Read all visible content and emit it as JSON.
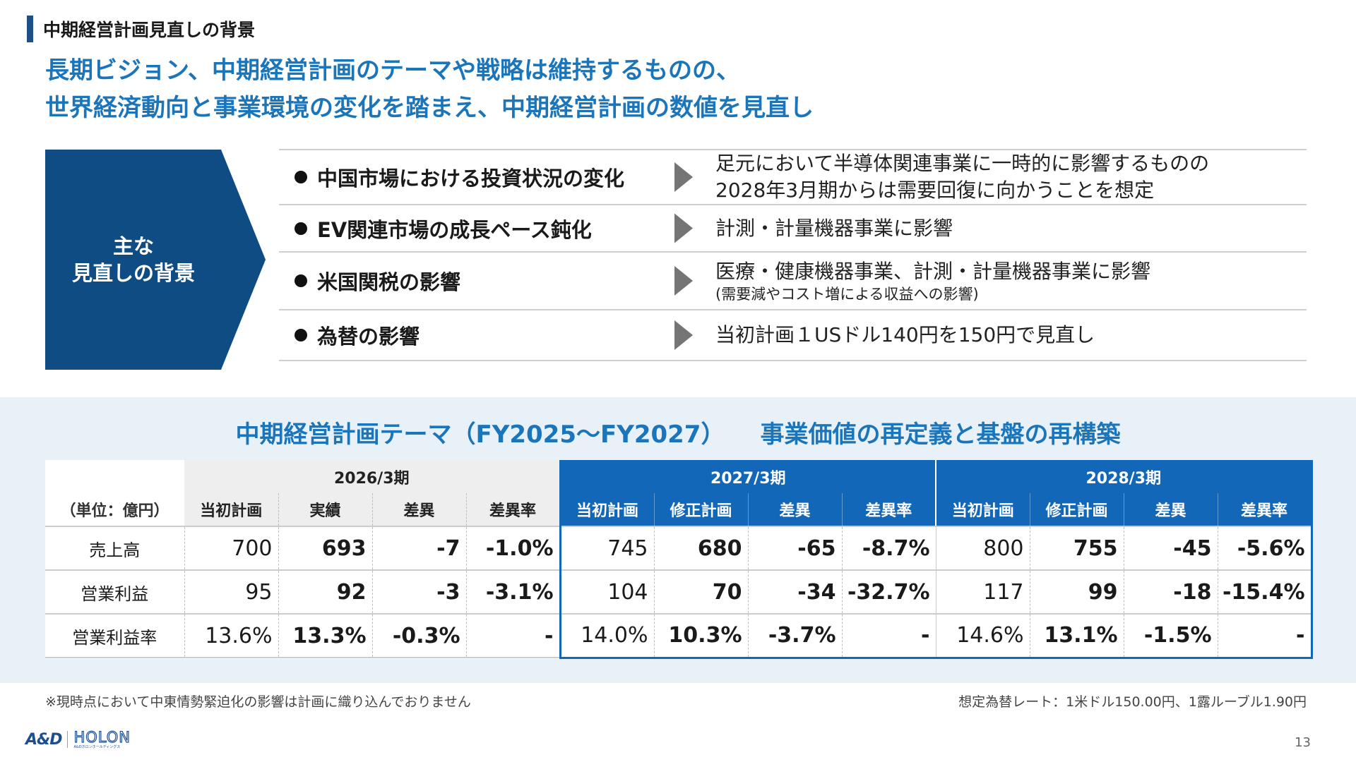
{
  "section_label": "中期経営計画見直しの背景",
  "headline": {
    "line1": "長期ビジョン、中期経営計画のテーマや戦略は維持するものの、",
    "line2": "世界経済動向と事業環境の変化を踏まえ、中期経営計画の数値を見直し"
  },
  "background_box": {
    "line1": "主な",
    "line2": "見直しの背景"
  },
  "reasons": [
    {
      "title": "中国市場における投資状況の変化",
      "detail_line1": "足元において半導体関連事業に一時的に影響するものの",
      "detail_line2": "2028年3月期からは需要回復に向かうことを想定",
      "detail_sub": ""
    },
    {
      "title": "EV関連市場の成長ペース鈍化",
      "detail_line1": "計測・計量機器事業に影響",
      "detail_line2": "",
      "detail_sub": ""
    },
    {
      "title": "米国関税の影響",
      "detail_line1": "医療・健康機器事業、計測・計量機器事業に影響",
      "detail_line2": "",
      "detail_sub": "(需要減やコスト増による収益への影響)"
    },
    {
      "title": "為替の影響",
      "detail_line1": "当初計画１USドル140円を150円で見直し",
      "detail_line2": "",
      "detail_sub": ""
    }
  ],
  "theme": {
    "title": "中期経営計画テーマ（FY2025～FY2027）",
    "subtitle": "事業価値の再定義と基盤の再構築"
  },
  "table": {
    "unit_label": "（単位：億円）",
    "years": [
      "2026/3期",
      "2027/3期",
      "2028/3期"
    ],
    "columns_2026": [
      "当初計画",
      "実績",
      "差異",
      "差異率"
    ],
    "columns_2027": [
      "当初計画",
      "修正計画",
      "差異",
      "差異率"
    ],
    "columns_2028": [
      "当初計画",
      "修正計画",
      "差異",
      "差異率"
    ],
    "rows": [
      {
        "label": "売上高",
        "values": [
          "700",
          "693",
          "-7",
          "-1.0%",
          "745",
          "680",
          "-65",
          "-8.7%",
          "800",
          "755",
          "-45",
          "-5.6%"
        ]
      },
      {
        "label": "営業利益",
        "values": [
          "95",
          "92",
          "-3",
          "-3.1%",
          "104",
          "70",
          "-34",
          "-32.7%",
          "117",
          "99",
          "-18",
          "-15.4%"
        ]
      },
      {
        "label": "営業利益率",
        "values": [
          "13.6%",
          "13.3%",
          "-0.3%",
          "-",
          "14.0%",
          "10.3%",
          "-3.7%",
          "-",
          "14.6%",
          "13.1%",
          "-1.5%",
          "-"
        ]
      }
    ]
  },
  "footnote": "※現時点において中東情勢緊迫化の影響は計画に織り込んでおりません",
  "fx_note": "想定為替レート：1米ドル150.00円、1露ルーブル1.90円",
  "logo": {
    "brand": "A&D",
    "holon": "HOLON",
    "tagline": "A&Dホロンホールディングス"
  },
  "page_number": "13",
  "colors": {
    "accent_blue": "#1b75bb",
    "navy": "#0f4c84",
    "table_blue": "#1367b8",
    "band_bg": "#e9f1f8"
  }
}
